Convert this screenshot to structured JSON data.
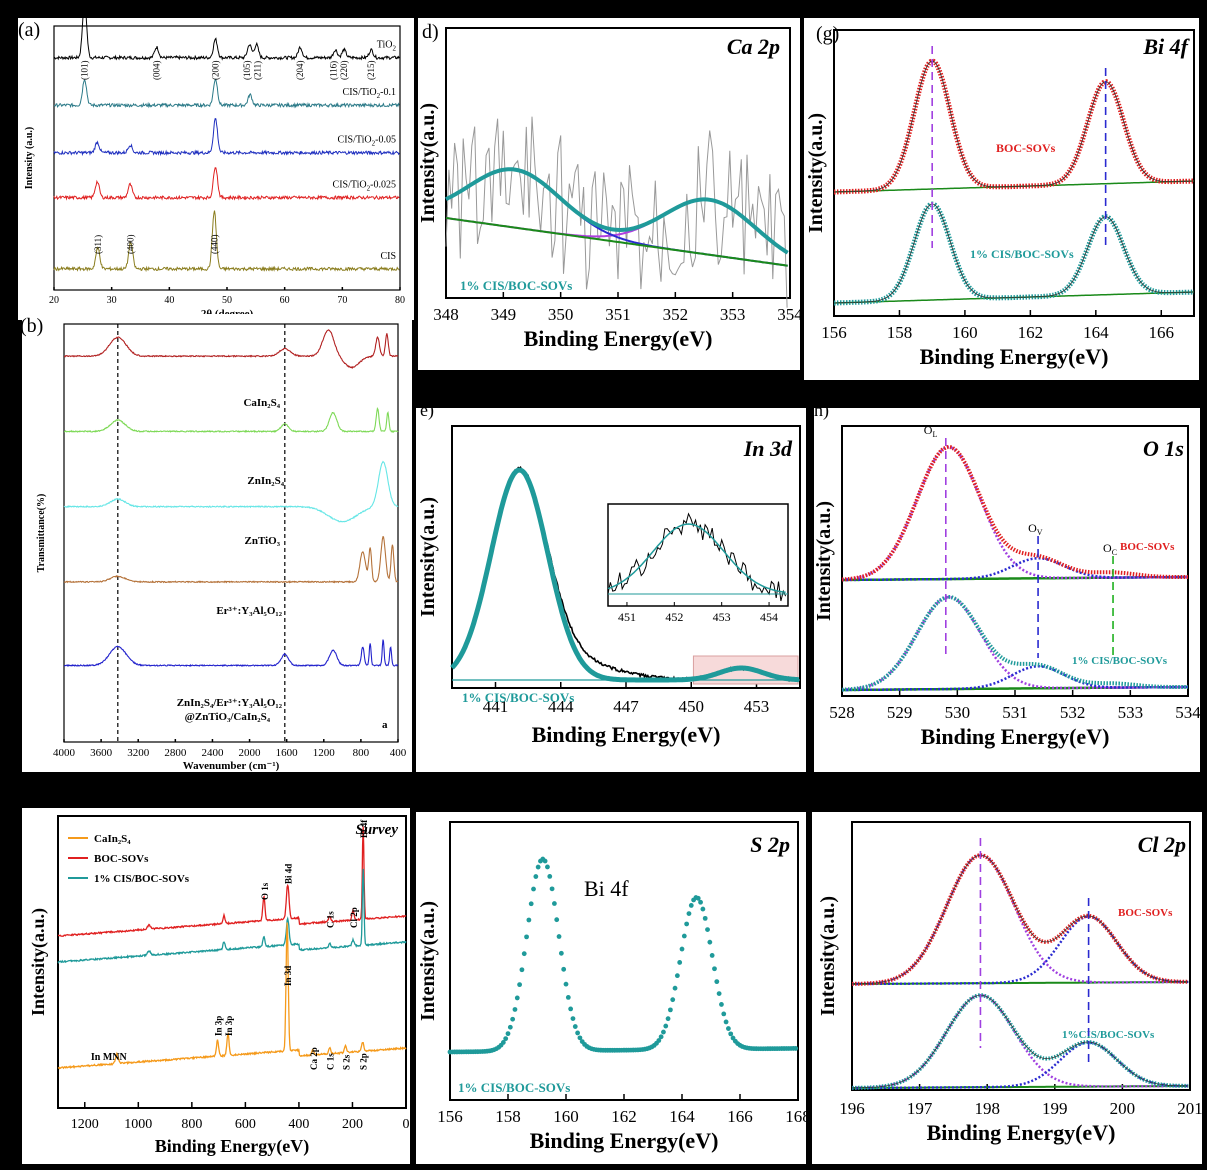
{
  "chart_data": [
    {
      "id": "a",
      "type": "line",
      "panel_label": "(a)",
      "xlabel": "2θ (degree)",
      "ylabel": "Intensity (a.u.)",
      "xlim": [
        20,
        80
      ],
      "xticks": [
        20,
        30,
        40,
        50,
        60,
        70,
        80
      ],
      "series": [
        {
          "name": "TiO2",
          "label_main": "TiO",
          "label_sub": "2",
          "color": "#000000",
          "offset": 0.88,
          "peaks": [
            [
              25.3,
              0.22
            ],
            [
              37.8,
              0.04
            ],
            [
              48.0,
              0.07
            ],
            [
              53.9,
              0.05
            ],
            [
              55.1,
              0.05
            ],
            [
              62.7,
              0.04
            ],
            [
              68.8,
              0.03
            ],
            [
              70.3,
              0.03
            ],
            [
              75.0,
              0.03
            ]
          ]
        },
        {
          "name": "CIS/TiO2-0.1",
          "label_main": "CIS/TiO",
          "label_sub": "2",
          "label_tail": "-0.1",
          "color": "#2b7a88",
          "offset": 0.7,
          "peaks": [
            [
              25.3,
              0.1
            ],
            [
              48.0,
              0.1
            ],
            [
              54.0,
              0.04
            ]
          ]
        },
        {
          "name": "CIS/TiO2-0.05",
          "label_main": "CIS/TiO",
          "label_sub": "2",
          "label_tail": "-0.05",
          "color": "#1f2fbf",
          "offset": 0.52,
          "peaks": [
            [
              27.5,
              0.04
            ],
            [
              33.2,
              0.03
            ],
            [
              48.0,
              0.13
            ]
          ]
        },
        {
          "name": "CIS/TiO2-0.025",
          "label_main": "CIS/TiO",
          "label_sub": "2",
          "label_tail": "-0.025",
          "color": "#e02020",
          "offset": 0.35,
          "peaks": [
            [
              27.5,
              0.06
            ],
            [
              33.2,
              0.05
            ],
            [
              48.0,
              0.12
            ]
          ]
        },
        {
          "name": "CIS",
          "label_main": "CIS",
          "color": "#8a7d1e",
          "offset": 0.08,
          "peaks": [
            [
              27.6,
              0.08
            ],
            [
              33.3,
              0.1
            ],
            [
              47.8,
              0.22
            ]
          ]
        }
      ],
      "annotations": [
        {
          "text": "(101)",
          "x": 25.3
        },
        {
          "text": "(004)",
          "x": 37.8
        },
        {
          "text": "(200)",
          "x": 48.0
        },
        {
          "text": "(105)",
          "x": 53.5
        },
        {
          "text": "(211)",
          "x": 55.3
        },
        {
          "text": "(204)",
          "x": 62.7
        },
        {
          "text": "(116)",
          "x": 68.5
        },
        {
          "text": "(220)",
          "x": 70.3
        },
        {
          "text": "(215)",
          "x": 75.0
        },
        {
          "text": "(311)",
          "x": 27.6
        },
        {
          "text": "(400)",
          "x": 33.3
        },
        {
          "text": "(440)",
          "x": 47.8
        }
      ]
    },
    {
      "id": "b",
      "type": "line",
      "panel_label": "(b)",
      "xlabel": "Wavenumber (cm⁻¹)",
      "ylabel": "Transmittance(%)",
      "xlim": [
        4000,
        400
      ],
      "xticks": [
        4000,
        3600,
        3200,
        2800,
        2400,
        2000,
        1600,
        1200,
        800,
        400
      ],
      "vlines": [
        3420,
        1620
      ],
      "corner_label": "a",
      "series": [
        {
          "name": "CaIn2S4",
          "color": "#b22222",
          "offset": 0.88
        },
        {
          "name": "ZnIn2S4",
          "color": "#7ed957",
          "offset": 0.7
        },
        {
          "name": "ZnTiO3",
          "color": "#66e6e6",
          "offset": 0.52
        },
        {
          "name": "Er3+:Y3Al5O12",
          "color": "#b5733b",
          "offset": 0.34
        },
        {
          "name": "ZnIn2S4/Er3+:Y3Al5O12@ZnTiO3/CaIn2S4",
          "color": "#2222cc",
          "offset": 0.14
        }
      ],
      "labels": {
        "cains": "CaIn₂S₄",
        "znins": "ZnIn₂S₄",
        "zntio": "ZnTiO₃",
        "yag": "Er³⁺:Y₃Al₅O₁₂",
        "comp1": "ZnIn₂S₄/Er³⁺:Y₃Al₅O₁₂",
        "comp2": "@ZnTiO₃/CaIn₂S₄"
      }
    },
    {
      "id": "d",
      "type": "line",
      "panel_label": "d)",
      "title": "Ca 2p",
      "xlabel": "Binding Energy(eV)",
      "ylabel": "Intensity(a.u.)",
      "xlim": [
        348,
        354
      ],
      "xticks": [
        348,
        349,
        350,
        351,
        352,
        353,
        354
      ],
      "sample_label": "1% CIS/BOC-SOVs",
      "series": [
        {
          "name": "raw",
          "color": "#999999"
        },
        {
          "name": "envelope",
          "color": "#1f9a9a"
        },
        {
          "name": "peak1",
          "color": "#2a2ad0",
          "center": 349.2
        },
        {
          "name": "peak2",
          "color": "#b040e0",
          "center": 352.6
        },
        {
          "name": "background",
          "color": "#1a8a1a"
        }
      ]
    },
    {
      "id": "g",
      "type": "line",
      "panel_label": "(g)",
      "title": "Bi 4f",
      "xlabel": "Binding Energy(eV)",
      "ylabel": "Intensity(a.u.)",
      "xlim": [
        156,
        167
      ],
      "xticks": [
        156,
        158,
        160,
        162,
        164,
        166
      ],
      "peak_centers": [
        159.0,
        164.3
      ],
      "series": [
        {
          "name": "BOC-SOVs",
          "color": "#e02020"
        },
        {
          "name": "1% CIS/BOC-SOVs",
          "color": "#1f9a9a"
        }
      ]
    },
    {
      "id": "e",
      "type": "line",
      "panel_label": "e)",
      "title": "In 3d",
      "xlabel": "Binding Energy(eV)",
      "ylabel": "Intensity(a.u.)",
      "xlim": [
        439,
        455
      ],
      "xticks": [
        441,
        444,
        447,
        450,
        453
      ],
      "peak_center": 442.1,
      "minor_peak_center": 452.3,
      "inset_xticks": [
        451,
        452,
        453,
        454
      ],
      "sample_label": "1% CIS/BOC-SOVs"
    },
    {
      "id": "h",
      "type": "line",
      "panel_label": "h)",
      "title": "O 1s",
      "xlabel": "Binding Energy(eV)",
      "ylabel": "Intensity(a.u.)",
      "xlim": [
        528,
        534
      ],
      "xticks": [
        528,
        529,
        530,
        531,
        532,
        533,
        534
      ],
      "markers": [
        {
          "main": "O",
          "sub": "L",
          "x": 529.8
        },
        {
          "main": "O",
          "sub": "V",
          "x": 531.4
        },
        {
          "main": "O",
          "sub": "C",
          "x": 532.7
        }
      ],
      "series": [
        {
          "name": "BOC-SOVs",
          "color": "#e02020"
        },
        {
          "name": "1% CIS/BOC-SOVs",
          "color": "#1f9a9a"
        }
      ]
    },
    {
      "id": "survey",
      "type": "line",
      "title": "Survey",
      "xlabel": "Binding Energy(eV)",
      "ylabel": "Intensity(a.u.)",
      "xlim": [
        1300,
        0
      ],
      "xticks": [
        1200,
        1000,
        800,
        600,
        400,
        200,
        0
      ],
      "series": [
        {
          "name": "CaIn₂S₄",
          "color": "#f59a1b"
        },
        {
          "name": "BOC-SOVs",
          "color": "#e02020"
        },
        {
          "name": "1% CIS/BOC-SOVs",
          "color": "#1f9a9a"
        }
      ],
      "annotations": [
        {
          "text": "O 1s",
          "x": 531
        },
        {
          "text": "Bi 4d",
          "x": 442
        },
        {
          "text": "C 1s",
          "x": 285
        },
        {
          "text": "Cl 2p",
          "x": 198
        },
        {
          "text": "Bi 4f",
          "x": 160
        },
        {
          "text": "In 3d",
          "x": 444
        },
        {
          "text": "In MNN",
          "x": 1080
        },
        {
          "text": "In 3p",
          "x": 704
        },
        {
          "text": "In 3p",
          "x": 665
        },
        {
          "text": "Ca 2p",
          "x": 348
        },
        {
          "text": "C 1s",
          "x": 285
        },
        {
          "text": "S 2s",
          "x": 226
        },
        {
          "text": "S 2p",
          "x": 162
        }
      ]
    },
    {
      "id": "s",
      "type": "scatter",
      "title": "S 2p",
      "inner_label": "Bi 4f",
      "xlabel": "Binding Energy(eV)",
      "ylabel": "Intensity(a.u.)",
      "xlim": [
        156,
        168
      ],
      "xticks": [
        156,
        158,
        160,
        162,
        164,
        166,
        168
      ],
      "peak_centers": [
        159.2,
        164.5
      ],
      "sample_label": "1% CIS/BOC-SOVs"
    },
    {
      "id": "cl",
      "type": "line",
      "title": "Cl 2p",
      "xlabel": "Binding Energy(eV)",
      "ylabel": "Intensity(a.u.)",
      "xlim": [
        196,
        201
      ],
      "xticks": [
        196,
        197,
        198,
        199,
        200,
        201
      ],
      "peak_centers": [
        197.9,
        199.5
      ],
      "series": [
        {
          "name": "BOC-SOVs",
          "color": "#e02020"
        },
        {
          "name": "1%CIS/BOC-SOVs",
          "color": "#1f9a9a"
        }
      ]
    }
  ]
}
